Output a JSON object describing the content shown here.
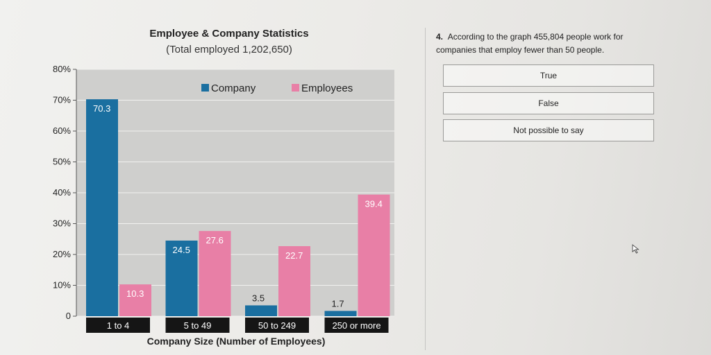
{
  "chart_data": {
    "type": "bar",
    "title": "Employee & Company Statistics",
    "subtitle": "(Total employed 1,202,650)",
    "xlabel": "Company Size (Number of Employees)",
    "ylabel": "",
    "categories": [
      "1 to 4",
      "5 to 49",
      "50 to 249",
      "250 or more"
    ],
    "series": [
      {
        "name": "Company",
        "values": [
          70.3,
          24.5,
          3.5,
          1.7
        ],
        "labels": [
          "70.3",
          "24.5",
          "3.5",
          "1.7"
        ],
        "color": "#1a6fa0"
      },
      {
        "name": "Employees",
        "values": [
          10.3,
          27.6,
          22.7,
          39.4
        ],
        "labels": [
          "10.3",
          "27.6",
          "22.7",
          "39.4"
        ],
        "color": "#e87fa6"
      }
    ],
    "ylim": [
      0,
      80
    ],
    "yticks": [
      0,
      10,
      20,
      30,
      40,
      50,
      60,
      70,
      80
    ],
    "ytick_labels": [
      "0",
      "10%",
      "20%",
      "30%",
      "40%",
      "50%",
      "60%",
      "70%",
      "80%"
    ],
    "grid": true,
    "legend": "top"
  },
  "question": {
    "number": "4.",
    "text": "According to the graph 455,804 people work for companies that employ fewer than 50 people."
  },
  "options": [
    "True",
    "False",
    "Not possible to say"
  ],
  "colors": {
    "company": "#1a6fa0",
    "employees": "#e87fa6",
    "plot_bg": "#cfcfcd"
  }
}
